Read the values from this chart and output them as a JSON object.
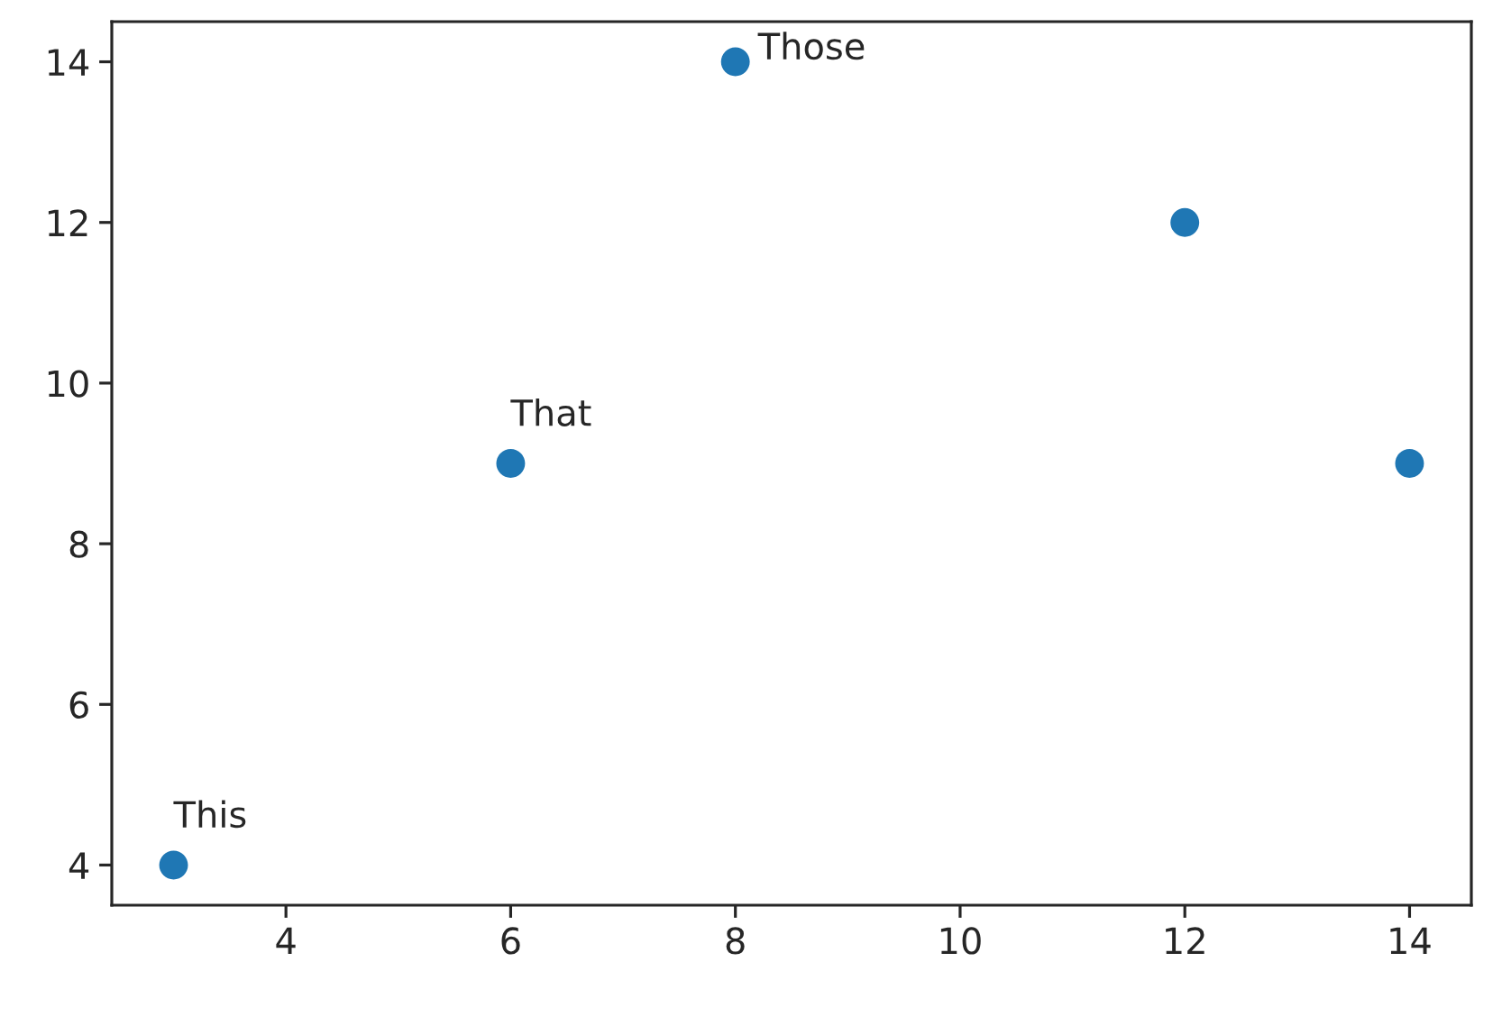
{
  "chart_data": {
    "type": "scatter",
    "x": [
      3,
      6,
      8,
      12,
      14
    ],
    "series": [
      {
        "color": "#1f77b4",
        "values": [
          4,
          9,
          14,
          12,
          9
        ]
      }
    ],
    "xlim": [
      2.45,
      14.55
    ],
    "ylim": [
      3.5,
      14.5
    ],
    "xticks": [
      4,
      6,
      8,
      10,
      12,
      14
    ],
    "yticks": [
      4,
      6,
      8,
      10,
      12,
      14
    ],
    "annotations": [
      {
        "text": "This",
        "x": 3,
        "y": 4
      },
      {
        "text": "That",
        "x": 6,
        "y": 9
      },
      {
        "text": "Those",
        "x": 8,
        "y": 14
      }
    ],
    "marker": "circle",
    "grid": false
  }
}
